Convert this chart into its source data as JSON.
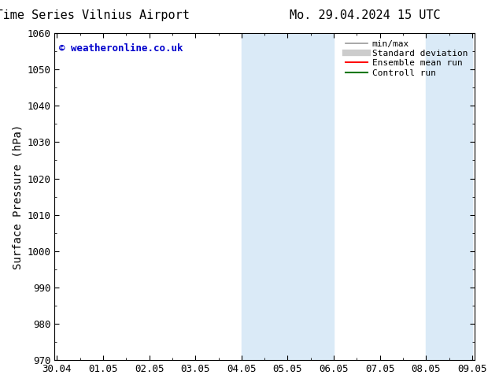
{
  "title_left": "ENS Time Series Vilnius Airport",
  "title_right": "Mo. 29.04.2024 15 UTC",
  "ylabel": "Surface Pressure (hPa)",
  "ylim": [
    970,
    1060
  ],
  "yticks": [
    970,
    980,
    990,
    1000,
    1010,
    1020,
    1030,
    1040,
    1050,
    1060
  ],
  "xtick_labels": [
    "30.04",
    "01.05",
    "02.05",
    "03.05",
    "04.05",
    "05.05",
    "06.05",
    "07.05",
    "08.05",
    "09.05"
  ],
  "xtick_positions": [
    0,
    1,
    2,
    3,
    4,
    5,
    6,
    7,
    8,
    9
  ],
  "xlim": [
    -0.05,
    9.05
  ],
  "shaded_regions": [
    {
      "x_start": 4,
      "x_end": 6
    },
    {
      "x_start": 8,
      "x_end": 9
    }
  ],
  "shade_color": "#daeaf7",
  "background_color": "#ffffff",
  "watermark_text": "© weatheronline.co.uk",
  "watermark_color": "#0000cc",
  "legend_items": [
    {
      "label": "min/max",
      "color": "#999999",
      "lw": 1.2,
      "style": "solid"
    },
    {
      "label": "Standard deviation",
      "color": "#cccccc",
      "lw": 6,
      "style": "solid"
    },
    {
      "label": "Ensemble mean run",
      "color": "#ff0000",
      "lw": 1.5,
      "style": "solid"
    },
    {
      "label": "Controll run",
      "color": "#007700",
      "lw": 1.5,
      "style": "solid"
    }
  ],
  "title_fontsize": 11,
  "tick_label_fontsize": 9,
  "ylabel_fontsize": 10,
  "watermark_fontsize": 9,
  "legend_fontsize": 8
}
